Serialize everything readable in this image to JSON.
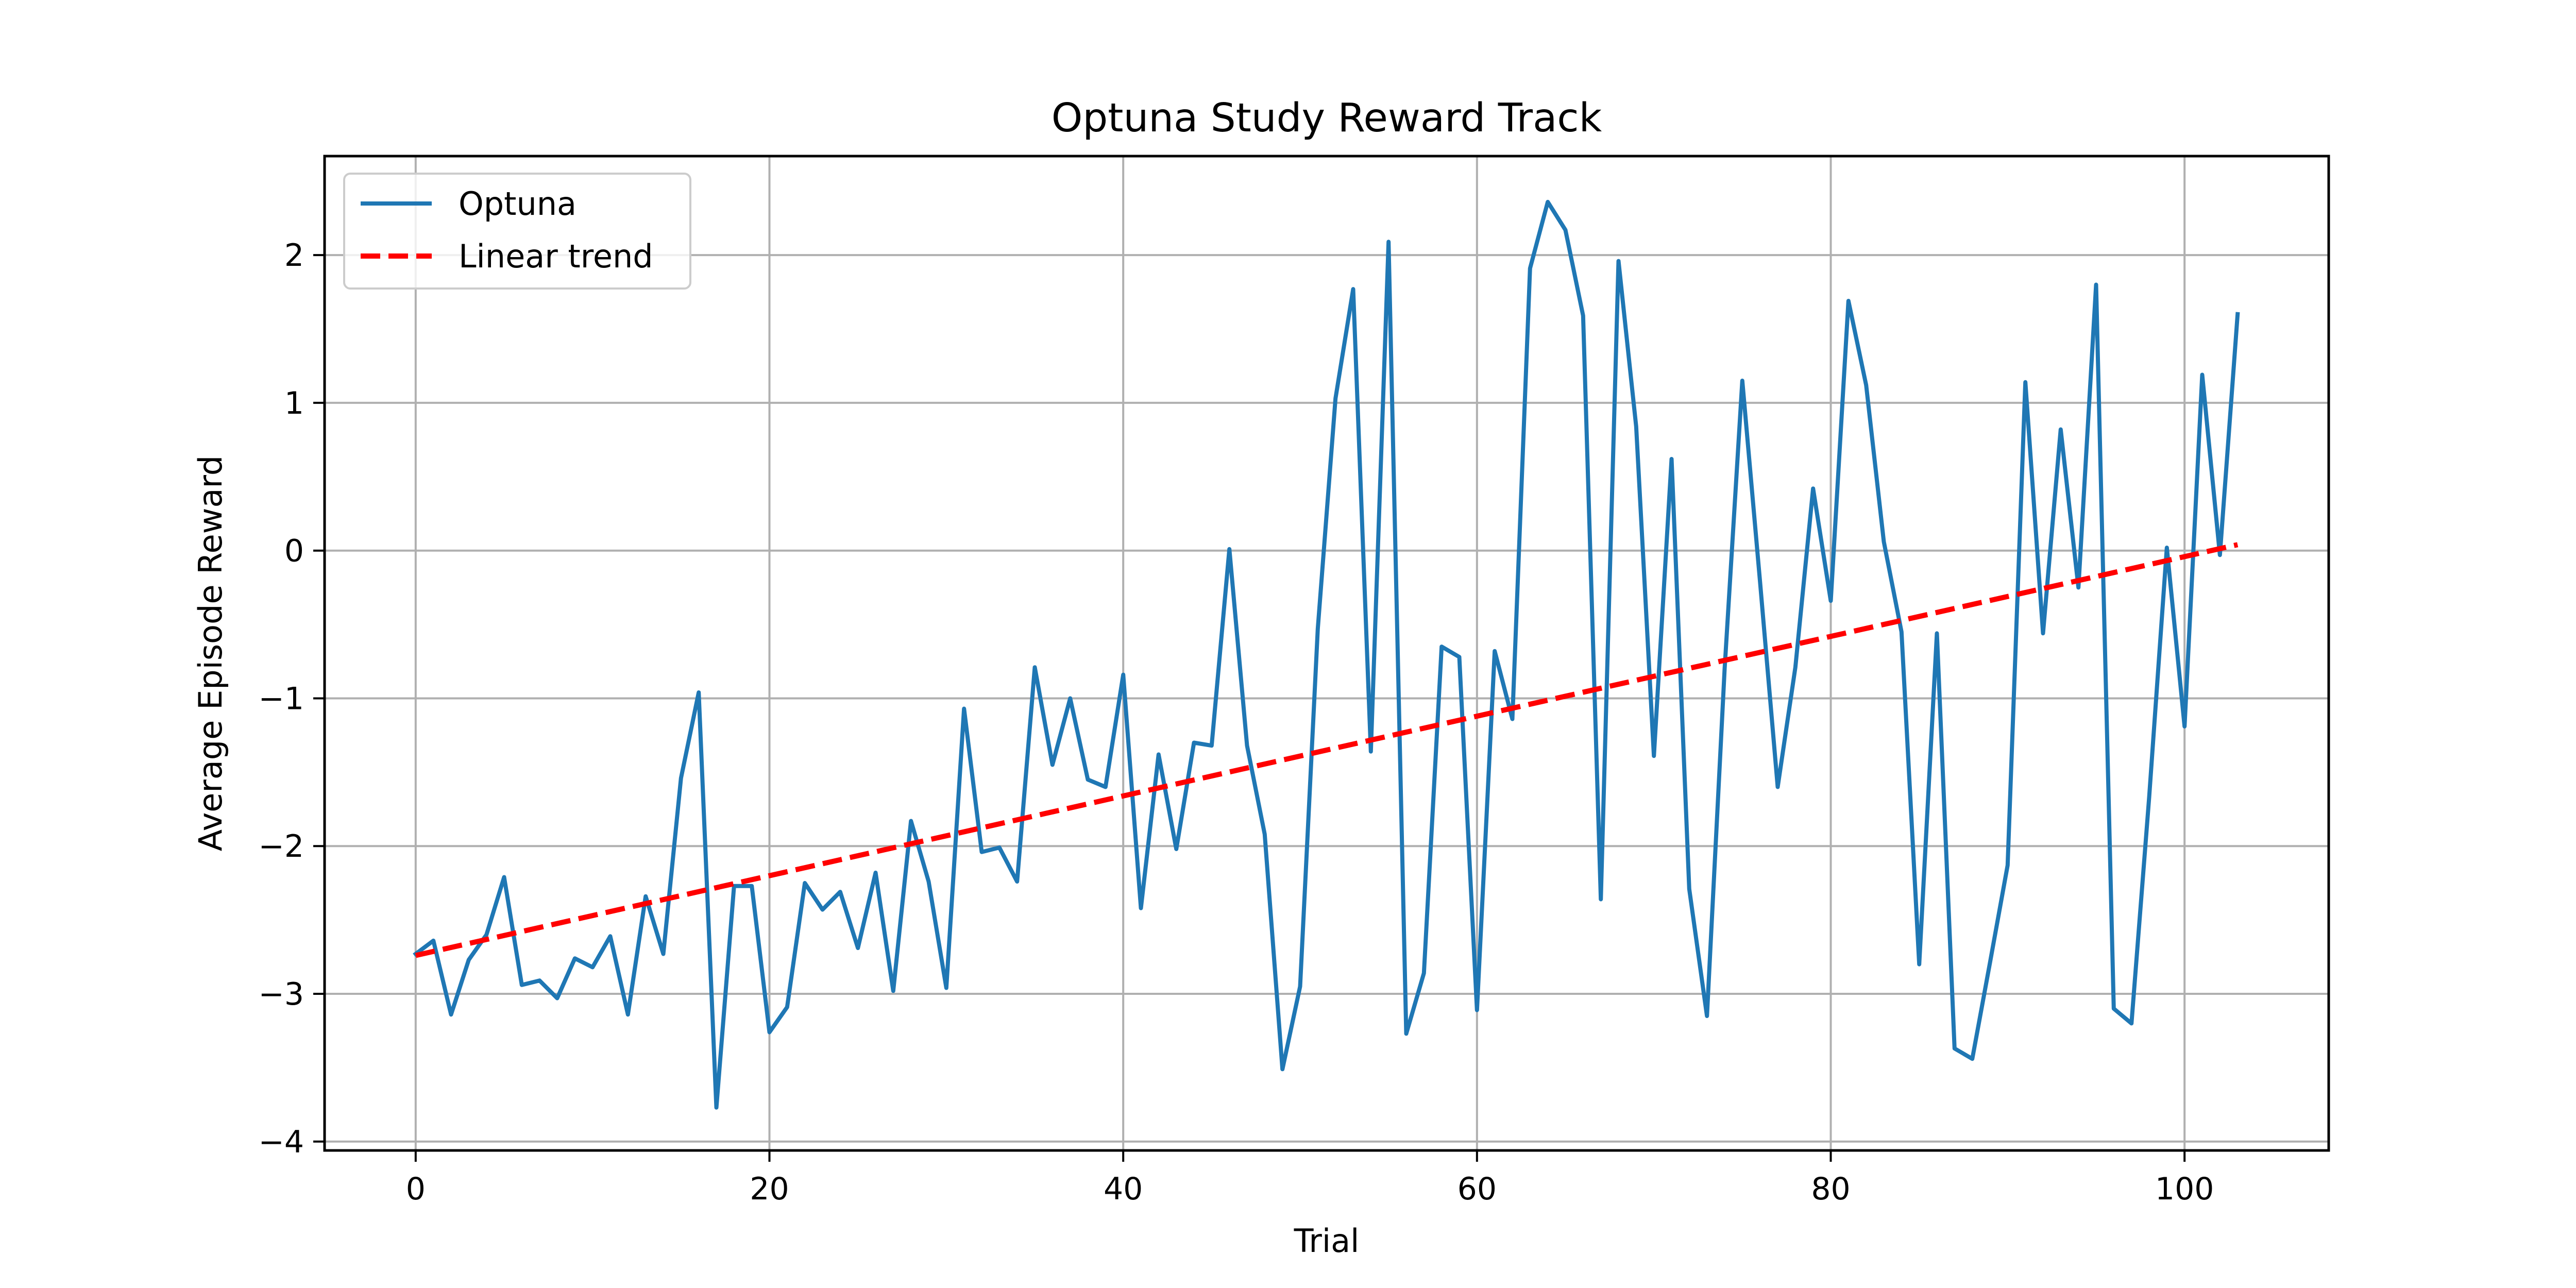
{
  "chart_data": {
    "type": "line",
    "title": "Optuna Study Reward Track",
    "xlabel": "Trial",
    "ylabel": "Average Episode Reward",
    "xlim": [
      -5.15,
      108.15
    ],
    "ylim": [
      -4.06,
      2.67
    ],
    "xticks": [
      0,
      20,
      40,
      60,
      80,
      100
    ],
    "yticks": [
      -4,
      -3,
      -2,
      -1,
      0,
      1,
      2
    ],
    "grid": true,
    "legend_position": "upper left",
    "series": [
      {
        "name": "Optuna",
        "style": "solid",
        "color": "#1f77b4",
        "x": [
          0,
          1,
          2,
          3,
          4,
          5,
          6,
          7,
          8,
          9,
          10,
          11,
          12,
          13,
          14,
          15,
          16,
          17,
          18,
          19,
          20,
          21,
          22,
          23,
          24,
          25,
          26,
          27,
          28,
          29,
          30,
          31,
          32,
          33,
          34,
          35,
          36,
          37,
          38,
          39,
          40,
          41,
          42,
          43,
          44,
          45,
          46,
          47,
          48,
          49,
          50,
          51,
          52,
          53,
          54,
          55,
          56,
          57,
          58,
          59,
          60,
          61,
          62,
          63,
          64,
          65,
          66,
          67,
          68,
          69,
          70,
          71,
          72,
          73,
          74,
          75,
          76,
          77,
          78,
          79,
          80,
          81,
          82,
          83,
          84,
          85,
          86,
          87,
          88,
          89,
          90,
          91,
          92,
          93,
          94,
          95,
          96,
          97,
          98,
          99,
          100,
          101,
          102,
          103
        ],
        "values": [
          -2.73,
          -2.64,
          -3.14,
          -2.77,
          -2.6,
          -2.21,
          -2.94,
          -2.91,
          -3.03,
          -2.76,
          -2.82,
          -2.61,
          -3.14,
          -2.34,
          -2.73,
          -1.54,
          -0.96,
          -3.77,
          -2.27,
          -2.27,
          -3.26,
          -3.09,
          -2.25,
          -2.43,
          -2.31,
          -2.69,
          -2.18,
          -2.98,
          -1.83,
          -2.24,
          -2.96,
          -1.07,
          -2.04,
          -2.01,
          -2.24,
          -0.79,
          -1.45,
          -1.0,
          -1.55,
          -1.6,
          -0.84,
          -2.42,
          -1.38,
          -2.02,
          -1.3,
          -1.32,
          0.01,
          -1.32,
          -1.92,
          -3.51,
          -2.95,
          -0.53,
          1.03,
          1.77,
          -1.36,
          2.09,
          -3.27,
          -2.86,
          -0.65,
          -0.72,
          -3.11,
          -0.68,
          -1.14,
          1.91,
          2.36,
          2.17,
          1.59,
          -2.36,
          1.96,
          0.84,
          -1.39,
          0.62,
          -2.29,
          -3.15,
          -0.8,
          1.15,
          -0.21,
          -1.6,
          -0.79,
          0.42,
          -0.34,
          1.69,
          1.12,
          0.06,
          -0.55,
          -2.8,
          -0.56,
          -3.37,
          -3.44,
          -2.79,
          -2.13,
          1.14,
          -0.56,
          0.82,
          -0.25,
          1.8,
          -3.1,
          -3.2,
          -1.67,
          0.02,
          -1.19,
          1.19,
          -0.03,
          1.6
        ]
      },
      {
        "name": "Linear trend",
        "style": "dashed",
        "color": "#ff0000",
        "x": [
          0,
          103
        ],
        "values": [
          -2.74,
          0.04
        ]
      }
    ]
  }
}
